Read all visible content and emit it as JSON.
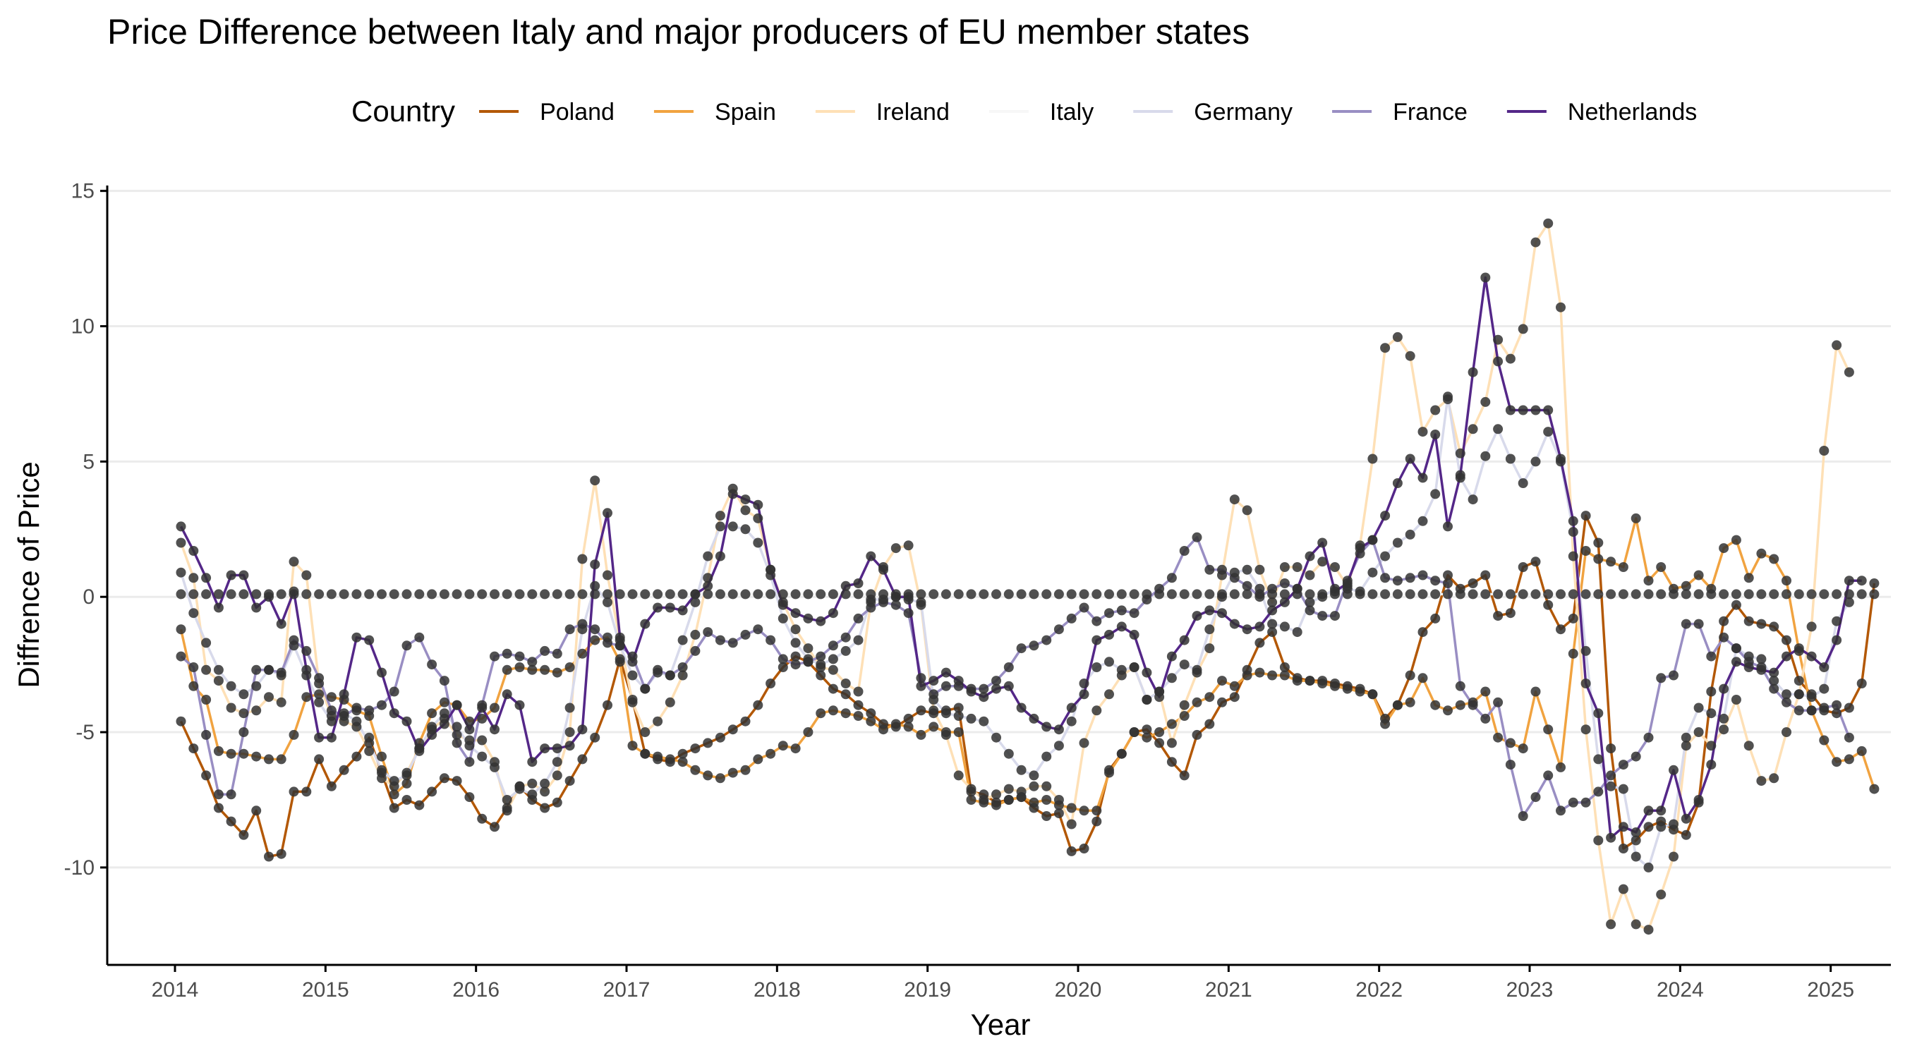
{
  "chart_data": {
    "type": "line",
    "title": "Price Difference between Italy and major producers of EU member states",
    "xlabel": "Year",
    "ylabel": "Diffrence of Price",
    "legend_title": "Country",
    "legend_position": "top",
    "grid": "horizontal major",
    "xlim": [
      2013.55,
      2025.4
    ],
    "ylim": [
      -13.6,
      15.2
    ],
    "x_ticks": [
      "2014",
      "2015",
      "2016",
      "2017",
      "2018",
      "2019",
      "2020",
      "2021",
      "2022",
      "2023",
      "2024",
      "2025"
    ],
    "y_ticks": [
      "15",
      "10",
      "5",
      "0",
      "-5",
      "-10"
    ],
    "marker_color": "#333333",
    "x_start": 2014.04,
    "x_step": 0.08333,
    "series": [
      {
        "name": "Poland",
        "color": "#b35806",
        "values": [
          -4.6,
          -5.6,
          -6.6,
          -7.8,
          -8.3,
          -8.8,
          -7.9,
          -9.6,
          -9.5,
          -7.2,
          -7.2,
          -6.0,
          -7.0,
          -6.4,
          -5.9,
          -5.2,
          -6.5,
          -7.8,
          -7.5,
          -7.7,
          -7.2,
          -6.7,
          -6.8,
          -7.4,
          -8.2,
          -8.5,
          -7.8,
          -7.0,
          -7.5,
          -7.8,
          -7.6,
          -6.8,
          -6.0,
          -5.2,
          -4.0,
          -2.3,
          -3.8,
          -5.8,
          -6.0,
          -6.1,
          -5.8,
          -5.6,
          -5.4,
          -5.2,
          -4.9,
          -4.6,
          -4.0,
          -3.2,
          -2.6,
          -2.2,
          -2.4,
          -2.9,
          -3.4,
          -3.6,
          -4.0,
          -4.3,
          -4.7,
          -4.8,
          -4.5,
          -4.2,
          -4.3,
          -4.2,
          -4.1,
          -7.2,
          -7.3,
          -7.6,
          -7.5,
          -7.4,
          -7.8,
          -8.1,
          -8.0,
          -9.4,
          -9.3,
          -8.3,
          -6.4,
          -5.8,
          -5.0,
          -4.9,
          -5.4,
          -6.1,
          -6.6,
          -5.1,
          -4.7,
          -3.9,
          -3.7,
          -2.7,
          -1.7,
          -1.3,
          -2.6,
          -3.0,
          -3.1,
          -3.1,
          -3.2,
          -3.3,
          -3.4,
          -3.6,
          -4.5,
          -4.0,
          -2.9,
          -1.3,
          -0.8,
          0.8,
          0.3,
          0.5,
          0.8,
          -0.7,
          -0.6,
          1.1,
          1.3,
          -0.3,
          -1.2,
          -0.8,
          3.0,
          2.0,
          -5.6,
          -9.3,
          -9.0,
          -8.5,
          -8.3,
          -8.6,
          -8.8,
          -7.6,
          -3.5,
          -0.9,
          -0.3,
          -0.9,
          -1.0,
          -1.1,
          -1.6,
          -3.1,
          -3.6,
          -4.2,
          -4.3,
          -4.1,
          -3.2,
          0.5
        ]
      },
      {
        "name": "Spain",
        "color": "#f1a340",
        "values": [
          -1.2,
          -3.3,
          -3.8,
          -5.7,
          -5.8,
          -5.8,
          -5.9,
          -6.0,
          -6.0,
          -5.1,
          -3.7,
          -3.6,
          -3.7,
          -3.8,
          -4.2,
          -4.4,
          -5.9,
          -7.3,
          -6.9,
          -5.4,
          -4.3,
          -3.9,
          -4.0,
          -4.6,
          -4.5,
          -4.1,
          -2.7,
          -2.6,
          -2.7,
          -2.7,
          -2.8,
          -2.6,
          -2.1,
          -1.6,
          -1.5,
          -2.4,
          -5.5,
          -5.8,
          -5.9,
          -6.0,
          -6.1,
          -6.4,
          -6.6,
          -6.7,
          -6.5,
          -6.4,
          -6.0,
          -5.8,
          -5.5,
          -5.6,
          -5.0,
          -4.3,
          -4.2,
          -4.3,
          -4.4,
          -4.6,
          -4.9,
          -4.7,
          -4.8,
          -5.1,
          -4.8,
          -5.0,
          -5.0,
          -7.5,
          -7.6,
          -7.7,
          -7.5,
          -7.4,
          -7.6,
          -7.5,
          -7.7,
          -7.8,
          -7.9,
          -7.9,
          -6.5,
          -5.8,
          -5.0,
          -5.2,
          -5.0,
          -4.7,
          -4.4,
          -3.9,
          -3.7,
          -3.1,
          -3.3,
          -2.9,
          -2.8,
          -2.9,
          -2.9,
          -3.1,
          -3.1,
          -3.2,
          -3.3,
          -3.4,
          -3.5,
          -3.6,
          -4.7,
          -4.0,
          -3.9,
          -3.0,
          -4.0,
          -4.2,
          -4.0,
          -3.9,
          -3.5,
          -5.2,
          -5.4,
          -5.6,
          -3.5,
          -4.9,
          -6.3,
          -2.1,
          1.7,
          1.4,
          1.3,
          1.1,
          2.9,
          0.6,
          1.1,
          0.3,
          0.4,
          0.8,
          0.3,
          1.8,
          2.1,
          0.7,
          1.6,
          1.4,
          0.6,
          -2.0,
          -4.2,
          -5.3,
          -6.1,
          -6.0,
          -5.7,
          -7.1
        ]
      },
      {
        "name": "Ireland",
        "color": "#fee0b6",
        "values": [
          2.0,
          0.7,
          -2.7,
          -3.1,
          -4.1,
          -4.3,
          -4.2,
          -3.7,
          -3.9,
          1.3,
          0.8,
          -3.2,
          -4.4,
          -4.6,
          -4.8,
          -5.7,
          -6.7,
          -7.0,
          -6.5,
          -5.6,
          -4.9,
          -4.5,
          -5.1,
          -5.3,
          -5.3,
          -6.1,
          -7.9,
          -7.0,
          -6.9,
          -7.2,
          -6.6,
          -5.0,
          1.4,
          4.3,
          0.8,
          -1.6,
          -3.9,
          -5.0,
          -4.6,
          -3.9,
          -2.9,
          -1.4,
          0.7,
          3.0,
          4.0,
          3.2,
          2.9,
          1.0,
          -0.2,
          -1.2,
          -1.9,
          -2.6,
          -2.7,
          -3.2,
          -3.5,
          -0.2,
          1.1,
          1.8,
          1.9,
          -0.3,
          -4.2,
          -5.1,
          -6.6,
          -7.1,
          -7.5,
          -7.3,
          -7.1,
          -7.2,
          -7.0,
          -7.0,
          -7.5,
          -8.4,
          -5.4,
          -4.2,
          -3.6,
          -2.9,
          -2.6,
          -3.8,
          -3.5,
          -5.4,
          -4.0,
          -2.8,
          -1.9,
          0.8,
          3.6,
          3.2,
          1.0,
          -0.2,
          1.1,
          1.1,
          0.8,
          1.3,
          1.1,
          0.4,
          1.9,
          5.1,
          9.2,
          9.6,
          8.9,
          6.1,
          6.9,
          7.3,
          5.3,
          6.2,
          7.2,
          9.5,
          8.8,
          9.9,
          13.1,
          13.8,
          10.7,
          1.5,
          -4.9,
          -9.0,
          -12.1,
          -10.8,
          -12.1,
          -12.3,
          -11.0,
          -9.6,
          -5.5,
          -5.0,
          -5.5,
          -4.9,
          -3.8,
          -5.5,
          -6.8,
          -6.7,
          -5.0,
          -3.6,
          -1.1,
          5.4,
          9.3,
          8.3
        ]
      },
      {
        "name": "Italy",
        "color": "#f7f7f7",
        "values": [
          0.1,
          0.1,
          0.1,
          0.1,
          0.1,
          0.1,
          0.1,
          0.1,
          0.1,
          0.1,
          0.1,
          0.1,
          0.1,
          0.1,
          0.1,
          0.1,
          0.1,
          0.1,
          0.1,
          0.1,
          0.1,
          0.1,
          0.1,
          0.1,
          0.1,
          0.1,
          0.1,
          0.1,
          0.1,
          0.1,
          0.1,
          0.1,
          0.1,
          0.1,
          0.1,
          0.1,
          0.1,
          0.1,
          0.1,
          0.1,
          0.1,
          0.1,
          0.1,
          0.1,
          0.1,
          0.1,
          0.1,
          0.1,
          0.1,
          0.1,
          0.1,
          0.1,
          0.1,
          0.1,
          0.1,
          0.1,
          0.1,
          0.1,
          0.1,
          0.1,
          0.1,
          0.1,
          0.1,
          0.1,
          0.1,
          0.1,
          0.1,
          0.1,
          0.1,
          0.1,
          0.1,
          0.1,
          0.1,
          0.1,
          0.1,
          0.1,
          0.1,
          0.1,
          0.1,
          0.1,
          0.1,
          0.1,
          0.1,
          0.1,
          0.1,
          0.1,
          0.1,
          0.1,
          0.1,
          0.1,
          0.1,
          0.1,
          0.1,
          0.1,
          0.1,
          0.1,
          0.1,
          0.1,
          0.1,
          0.1,
          0.1,
          0.1,
          0.1,
          0.1,
          0.1,
          0.1,
          0.1,
          0.1,
          0.1,
          0.1,
          0.1,
          0.1,
          0.1,
          0.1,
          0.1,
          0.1,
          0.1,
          0.1,
          0.1,
          0.1,
          0.1,
          0.1,
          0.1,
          0.1,
          0.1,
          0.1,
          0.1,
          0.1,
          0.1,
          0.1,
          0.1,
          0.1,
          0.1,
          0.1,
          0.1,
          0.1
        ]
      },
      {
        "name": "Germany",
        "color": "#d8daeb",
        "values": [
          0.9,
          -0.6,
          -1.7,
          -2.7,
          -3.3,
          -3.6,
          -3.3,
          -2.7,
          -2.9,
          -1.8,
          -2.9,
          -3.9,
          -4.6,
          -4.3,
          -4.6,
          -5.4,
          -6.4,
          -6.8,
          -6.6,
          -5.6,
          -4.8,
          -4.3,
          -4.8,
          -5.5,
          -5.9,
          -6.3,
          -7.5,
          -7.1,
          -7.3,
          -6.9,
          -6.1,
          -4.1,
          -1.2,
          0.4,
          -0.2,
          -1.8,
          -2.9,
          -3.4,
          -2.8,
          -2.9,
          -1.6,
          -0.2,
          1.5,
          2.6,
          2.6,
          2.5,
          2.0,
          0.8,
          -0.8,
          -1.7,
          -2.3,
          -2.5,
          -2.3,
          -2.0,
          -1.6,
          -0.1,
          -0.1,
          0.0,
          -0.1,
          -0.2,
          -3.8,
          -4.3,
          -4.4,
          -4.5,
          -4.6,
          -5.2,
          -5.8,
          -6.4,
          -6.6,
          -5.9,
          -5.5,
          -4.6,
          -3.2,
          -2.6,
          -2.4,
          -2.7,
          -2.6,
          -3.8,
          -3.5,
          -3.0,
          -2.5,
          -2.7,
          -1.2,
          0.0,
          0.9,
          1.0,
          0.3,
          -1.0,
          -1.1,
          -1.3,
          -0.2,
          0.0,
          0.3,
          0.3,
          0.2,
          0.9,
          1.5,
          2.0,
          2.3,
          2.8,
          3.8,
          7.4,
          4.4,
          3.6,
          5.2,
          6.2,
          5.1,
          4.2,
          5.0,
          6.1,
          5.0,
          2.4,
          -2.0,
          -6.0,
          -7.0,
          -7.1,
          -9.6,
          -10.0,
          -8.5,
          -8.4,
          -5.2,
          -4.1,
          -4.3,
          -4.5,
          -1.9,
          -2.2,
          -2.3,
          -3.1,
          -3.6,
          -3.6,
          -3.7,
          -3.4,
          -0.9,
          -0.2
        ]
      },
      {
        "name": "France",
        "color": "#998ec3",
        "values": [
          -2.2,
          -2.6,
          -5.1,
          -7.3,
          -7.3,
          -5.0,
          -2.7,
          -2.7,
          -2.8,
          -1.6,
          -2.0,
          -3.0,
          -4.2,
          -4.4,
          -4.1,
          -4.2,
          -4.0,
          -3.5,
          -1.8,
          -1.5,
          -2.5,
          -3.1,
          -5.4,
          -6.1,
          -4.0,
          -2.2,
          -2.1,
          -2.2,
          -2.4,
          -2.0,
          -2.1,
          -1.2,
          -1.0,
          -1.2,
          -1.7,
          -1.8,
          -2.2,
          -3.4,
          -2.7,
          -2.9,
          -2.6,
          -2.0,
          -1.3,
          -1.6,
          -1.7,
          -1.4,
          -1.2,
          -1.6,
          -2.3,
          -2.5,
          -2.4,
          -2.2,
          -1.8,
          -1.5,
          -0.8,
          -0.4,
          -0.2,
          -0.3,
          -0.6,
          -3.0,
          -3.6,
          -3.3,
          -3.3,
          -3.4,
          -3.4,
          -3.1,
          -2.6,
          -1.9,
          -1.8,
          -1.6,
          -1.2,
          -0.8,
          -0.4,
          -0.9,
          -0.6,
          -0.5,
          -0.6,
          -0.1,
          0.3,
          0.7,
          1.7,
          2.2,
          1.0,
          1.0,
          0.7,
          0.4,
          0.0,
          0.3,
          0.5,
          0.3,
          -0.5,
          -0.7,
          -0.7,
          0.6,
          1.6,
          2.1,
          0.7,
          0.6,
          0.7,
          0.8,
          0.6,
          0.5,
          -3.3,
          -4.0,
          -4.5,
          -3.9,
          -6.2,
          -8.1,
          -7.4,
          -6.6,
          -7.9,
          -7.6,
          -7.6,
          -7.2,
          -6.6,
          -6.2,
          -5.9,
          -5.2,
          -3.0,
          -2.9,
          -1.0,
          -1.0,
          -2.2,
          -1.5,
          -1.9,
          -2.4,
          -2.6,
          -3.4,
          -3.9,
          -4.2,
          -4.2,
          -4.1,
          -4.0,
          -5.2
        ]
      },
      {
        "name": "Netherlands",
        "color": "#542788",
        "values": [
          2.6,
          1.7,
          0.7,
          -0.4,
          0.8,
          0.8,
          -0.4,
          0.0,
          -1.0,
          0.2,
          -2.7,
          -5.2,
          -5.2,
          -3.6,
          -1.5,
          -1.6,
          -2.8,
          -4.3,
          -4.6,
          -5.7,
          -5.1,
          -4.7,
          -4.0,
          -4.9,
          -4.1,
          -4.9,
          -3.6,
          -4.0,
          -6.1,
          -5.6,
          -5.6,
          -5.5,
          -4.9,
          1.2,
          3.1,
          -1.5,
          -2.4,
          -1.0,
          -0.4,
          -0.4,
          -0.5,
          0.1,
          0.4,
          1.5,
          3.8,
          3.6,
          3.4,
          1.0,
          -0.3,
          -0.6,
          -0.8,
          -0.9,
          -0.6,
          0.4,
          0.5,
          1.5,
          1.0,
          0.0,
          0.0,
          -3.3,
          -3.1,
          -2.8,
          -3.1,
          -3.5,
          -3.7,
          -3.4,
          -3.3,
          -4.1,
          -4.5,
          -4.8,
          -4.9,
          -4.1,
          -3.6,
          -1.6,
          -1.4,
          -1.1,
          -1.4,
          -2.8,
          -3.7,
          -2.2,
          -1.6,
          -0.7,
          -0.5,
          -0.6,
          -1.0,
          -1.2,
          -1.1,
          -0.5,
          -0.2,
          0.3,
          1.5,
          2.0,
          0.2,
          0.5,
          1.8,
          2.1,
          3.0,
          4.2,
          5.1,
          4.4,
          6.0,
          2.6,
          4.5,
          8.3,
          11.8,
          8.7,
          6.9,
          6.9,
          6.9,
          6.9,
          5.1,
          2.8,
          -3.2,
          -4.3,
          -8.9,
          -8.5,
          -8.7,
          -7.9,
          -7.9,
          -6.4,
          -8.2,
          -7.5,
          -6.2,
          -3.4,
          -2.4,
          -2.6,
          -2.7,
          -2.8,
          -2.2,
          -1.9,
          -2.2,
          -2.6,
          -1.6,
          0.6,
          0.6
        ]
      }
    ]
  }
}
